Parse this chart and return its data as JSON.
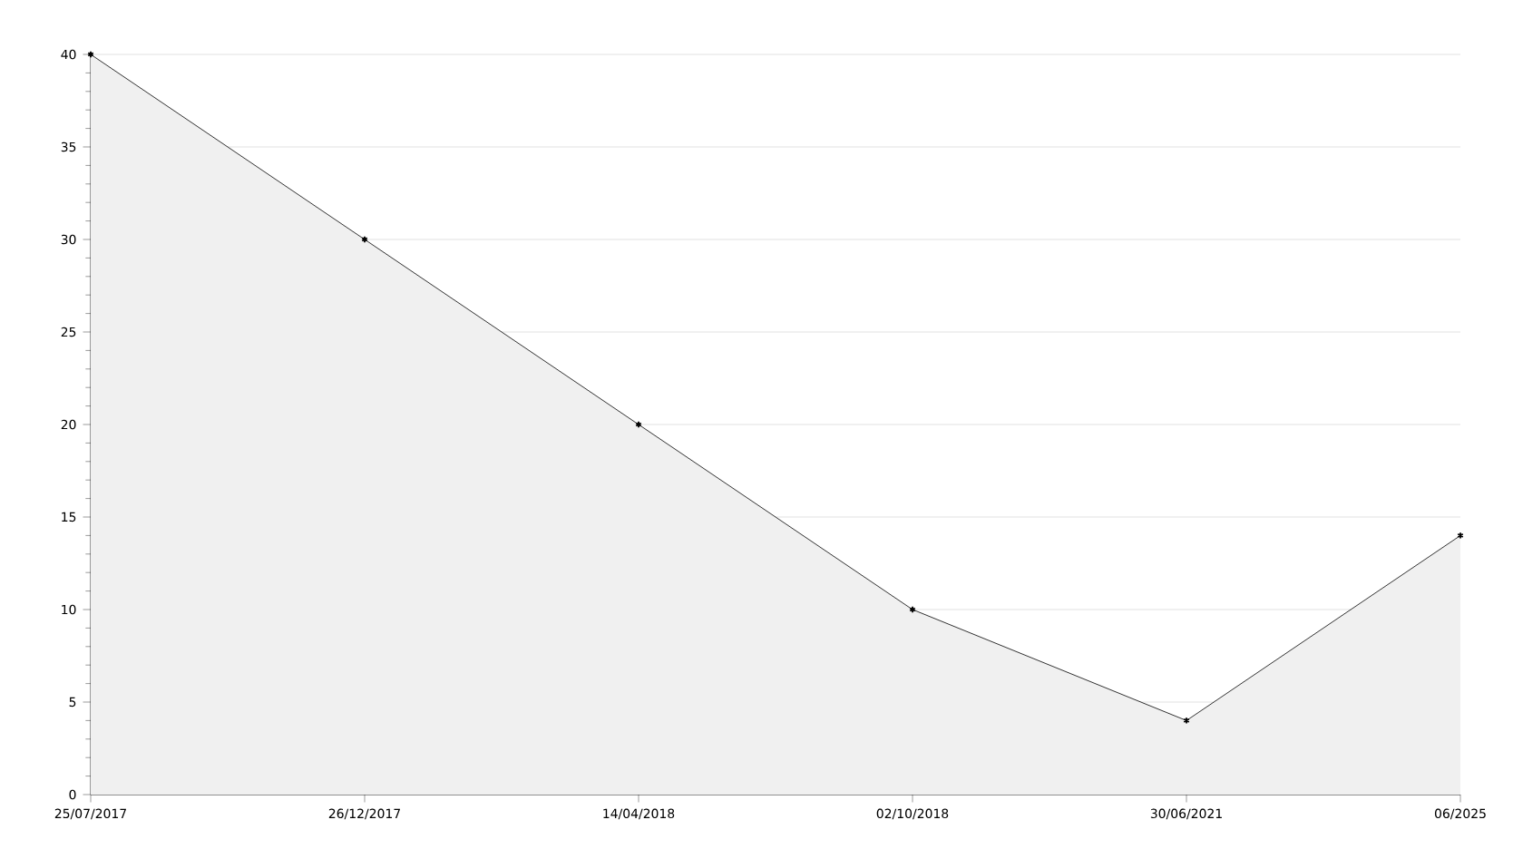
{
  "chart_data": {
    "type": "area",
    "categories": [
      "25/07/2017",
      "26/12/2017",
      "14/04/2018",
      "02/10/2018",
      "30/06/2021",
      "06/2025"
    ],
    "values": [
      40,
      30,
      20,
      10,
      4,
      14
    ],
    "color": "#f0f0f0",
    "ylim": [
      0,
      40
    ],
    "yticks": [
      0,
      5,
      10,
      15,
      20,
      25,
      30,
      35,
      40
    ],
    "grid": "y",
    "marker": "cross",
    "line_style": "solid"
  }
}
